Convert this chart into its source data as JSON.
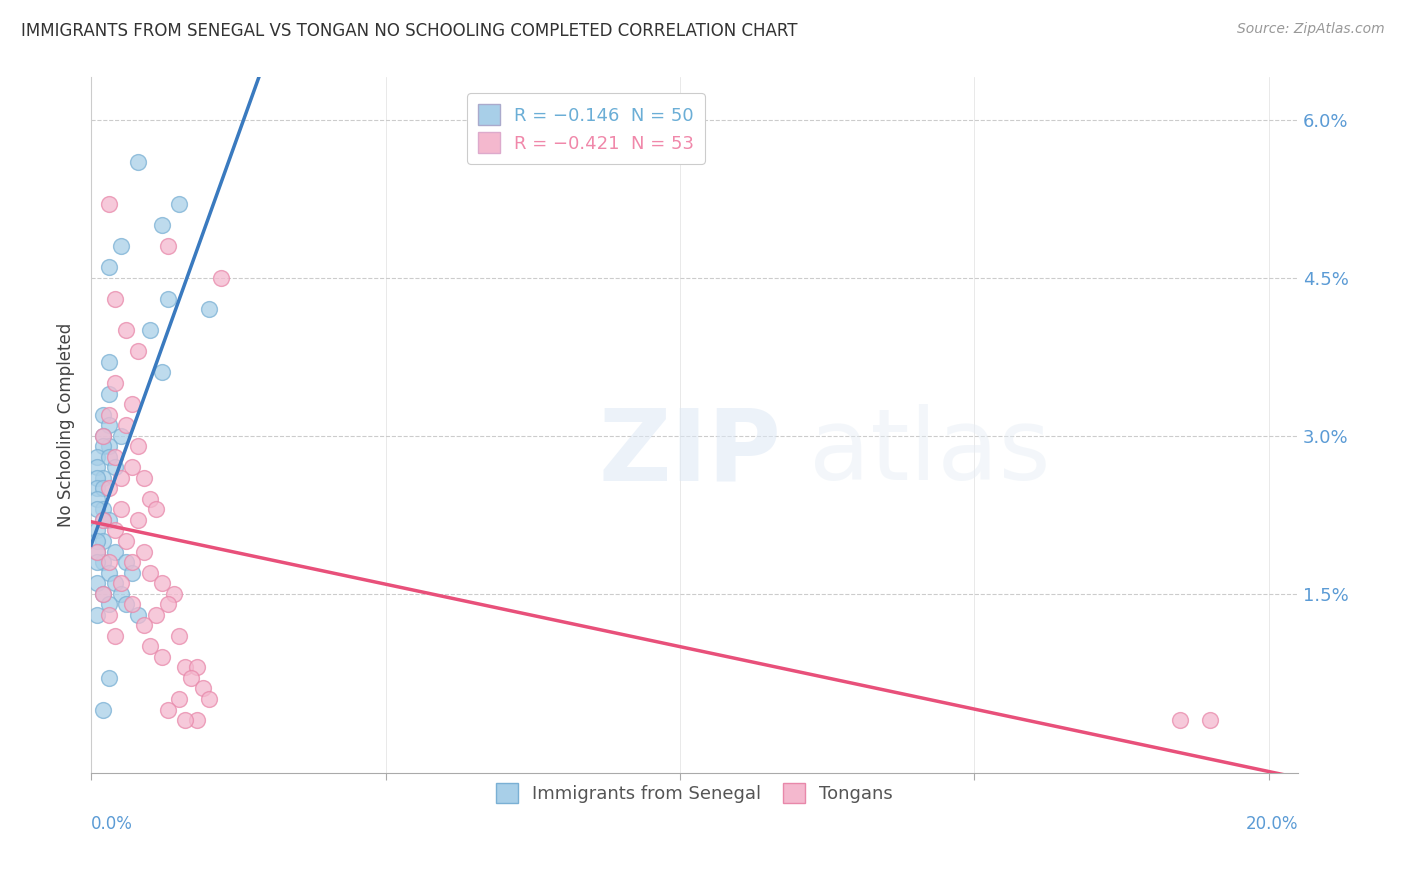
{
  "title": "IMMIGRANTS FROM SENEGAL VS TONGAN NO SCHOOLING COMPLETED CORRELATION CHART",
  "source": "Source: ZipAtlas.com",
  "ylabel": "No Schooling Completed",
  "ytick_vals": [
    0.0,
    0.015,
    0.03,
    0.045,
    0.06
  ],
  "ytick_labels": [
    "",
    "1.5%",
    "3.0%",
    "4.5%",
    "6.0%"
  ],
  "xtick_vals": [
    0.0,
    0.05,
    0.1,
    0.15,
    0.2
  ],
  "xlim": [
    0.0,
    0.205
  ],
  "ylim": [
    -0.002,
    0.064
  ],
  "legend_entries": [
    {
      "label_r": "R = ",
      "label_rv": "-0.146",
      "label_n": "  N = ",
      "label_nv": "50",
      "color": "#6baed6"
    },
    {
      "label_r": "R = ",
      "label_rv": "-0.421",
      "label_n": "  N = ",
      "label_nv": "53",
      "color": "#f088aa"
    }
  ],
  "legend_label_blue": "Immigrants from Senegal",
  "legend_label_pink": "Tongans",
  "senegal_color": "#a8cfe8",
  "tongan_color": "#f4b8ce",
  "senegal_edge_color": "#7ab0d4",
  "tongan_edge_color": "#e888aa",
  "senegal_line_color": "#3a7abf",
  "tongan_line_color": "#e8507a",
  "dashed_line_color": "#b0b8d0",
  "senegal_points": [
    [
      0.008,
      0.056
    ],
    [
      0.015,
      0.052
    ],
    [
      0.012,
      0.05
    ],
    [
      0.005,
      0.048
    ],
    [
      0.003,
      0.046
    ],
    [
      0.013,
      0.043
    ],
    [
      0.02,
      0.042
    ],
    [
      0.01,
      0.04
    ],
    [
      0.003,
      0.037
    ],
    [
      0.012,
      0.036
    ],
    [
      0.003,
      0.034
    ],
    [
      0.002,
      0.032
    ],
    [
      0.003,
      0.031
    ],
    [
      0.002,
      0.03
    ],
    [
      0.005,
      0.03
    ],
    [
      0.003,
      0.029
    ],
    [
      0.002,
      0.029
    ],
    [
      0.001,
      0.028
    ],
    [
      0.003,
      0.028
    ],
    [
      0.001,
      0.027
    ],
    [
      0.004,
      0.027
    ],
    [
      0.002,
      0.026
    ],
    [
      0.001,
      0.026
    ],
    [
      0.001,
      0.025
    ],
    [
      0.002,
      0.025
    ],
    [
      0.001,
      0.024
    ],
    [
      0.002,
      0.023
    ],
    [
      0.001,
      0.023
    ],
    [
      0.003,
      0.022
    ],
    [
      0.002,
      0.022
    ],
    [
      0.001,
      0.021
    ],
    [
      0.002,
      0.02
    ],
    [
      0.001,
      0.02
    ],
    [
      0.004,
      0.019
    ],
    [
      0.001,
      0.019
    ],
    [
      0.002,
      0.018
    ],
    [
      0.006,
      0.018
    ],
    [
      0.001,
      0.018
    ],
    [
      0.003,
      0.017
    ],
    [
      0.007,
      0.017
    ],
    [
      0.001,
      0.016
    ],
    [
      0.004,
      0.016
    ],
    [
      0.002,
      0.015
    ],
    [
      0.005,
      0.015
    ],
    [
      0.003,
      0.014
    ],
    [
      0.006,
      0.014
    ],
    [
      0.008,
      0.013
    ],
    [
      0.001,
      0.013
    ],
    [
      0.003,
      0.007
    ],
    [
      0.002,
      0.004
    ]
  ],
  "tongan_points": [
    [
      0.003,
      0.052
    ],
    [
      0.013,
      0.048
    ],
    [
      0.022,
      0.045
    ],
    [
      0.004,
      0.043
    ],
    [
      0.006,
      0.04
    ],
    [
      0.008,
      0.038
    ],
    [
      0.004,
      0.035
    ],
    [
      0.007,
      0.033
    ],
    [
      0.003,
      0.032
    ],
    [
      0.006,
      0.031
    ],
    [
      0.002,
      0.03
    ],
    [
      0.008,
      0.029
    ],
    [
      0.004,
      0.028
    ],
    [
      0.007,
      0.027
    ],
    [
      0.005,
      0.026
    ],
    [
      0.009,
      0.026
    ],
    [
      0.003,
      0.025
    ],
    [
      0.01,
      0.024
    ],
    [
      0.005,
      0.023
    ],
    [
      0.011,
      0.023
    ],
    [
      0.002,
      0.022
    ],
    [
      0.008,
      0.022
    ],
    [
      0.004,
      0.021
    ],
    [
      0.006,
      0.02
    ],
    [
      0.001,
      0.019
    ],
    [
      0.009,
      0.019
    ],
    [
      0.003,
      0.018
    ],
    [
      0.007,
      0.018
    ],
    [
      0.01,
      0.017
    ],
    [
      0.005,
      0.016
    ],
    [
      0.012,
      0.016
    ],
    [
      0.014,
      0.015
    ],
    [
      0.002,
      0.015
    ],
    [
      0.007,
      0.014
    ],
    [
      0.013,
      0.014
    ],
    [
      0.003,
      0.013
    ],
    [
      0.011,
      0.013
    ],
    [
      0.009,
      0.012
    ],
    [
      0.015,
      0.011
    ],
    [
      0.004,
      0.011
    ],
    [
      0.01,
      0.01
    ],
    [
      0.012,
      0.009
    ],
    [
      0.016,
      0.008
    ],
    [
      0.018,
      0.008
    ],
    [
      0.017,
      0.007
    ],
    [
      0.019,
      0.006
    ],
    [
      0.015,
      0.005
    ],
    [
      0.02,
      0.005
    ],
    [
      0.013,
      0.004
    ],
    [
      0.018,
      0.003
    ],
    [
      0.016,
      0.003
    ],
    [
      0.19,
      0.003
    ],
    [
      0.185,
      0.003
    ]
  ]
}
